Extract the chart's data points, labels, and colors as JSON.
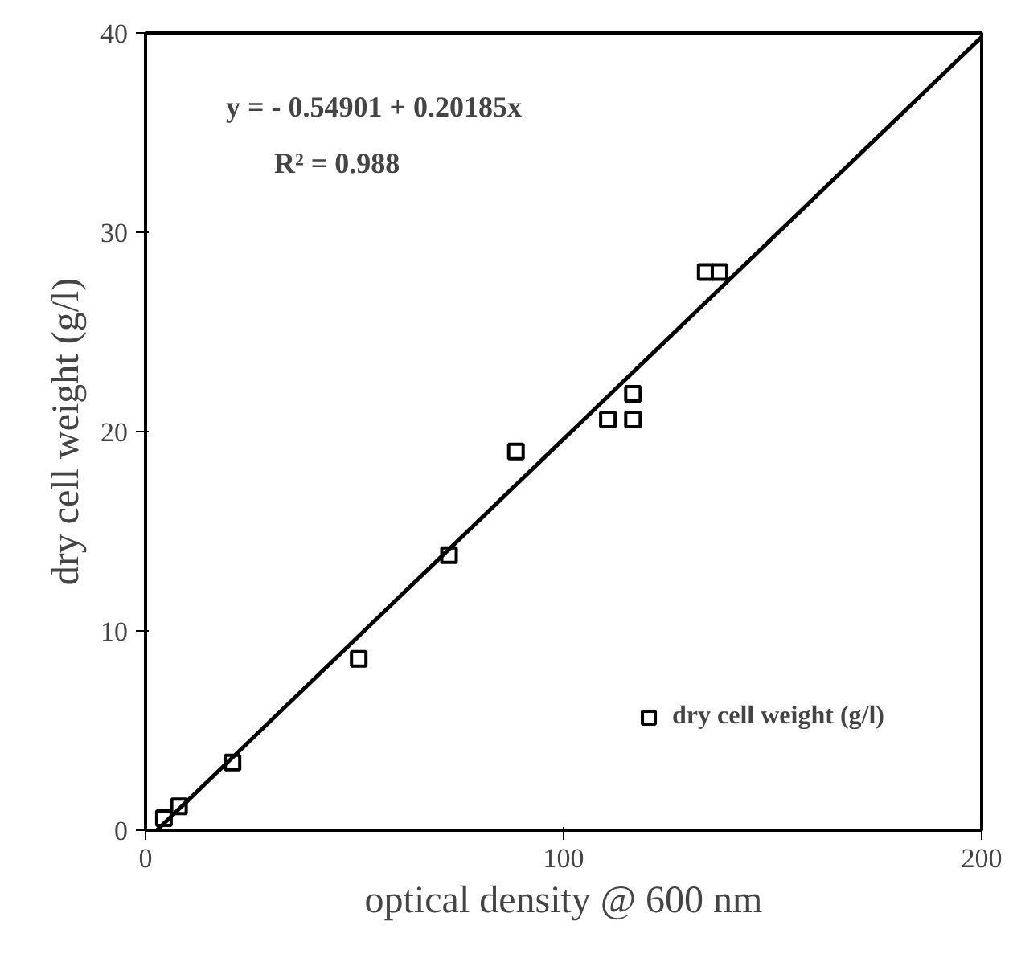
{
  "chart_data": {
    "type": "scatter",
    "xlabel": "optical density @ 600 nm",
    "ylabel": "dry cell weight (g/l)",
    "xlim": [
      0,
      200
    ],
    "ylim": [
      0,
      40
    ],
    "xticks": [
      0,
      100,
      200
    ],
    "yticks": [
      0,
      10,
      20,
      30,
      40
    ],
    "grid": false,
    "legend": "bottom right",
    "annotations": [
      "y =  - 0.54901 + 0.20185x",
      "R² = 0.988"
    ],
    "series": [
      {
        "name": "dry cell weight (g/l)",
        "color": "#000000",
        "marker": "square",
        "x": [
          4.4,
          8,
          20.8,
          51,
          72.6,
          88.6,
          110.6,
          116.6,
          116.6,
          134,
          137.3
        ],
        "values": [
          0.6,
          1.2,
          3.4,
          8.6,
          13.8,
          19.0,
          20.6,
          20.6,
          21.9,
          28,
          28
        ]
      },
      {
        "color": "#000000",
        "type": "line",
        "x": [
          2.72,
          200
        ],
        "values": [
          0,
          39.8
        ]
      }
    ]
  }
}
